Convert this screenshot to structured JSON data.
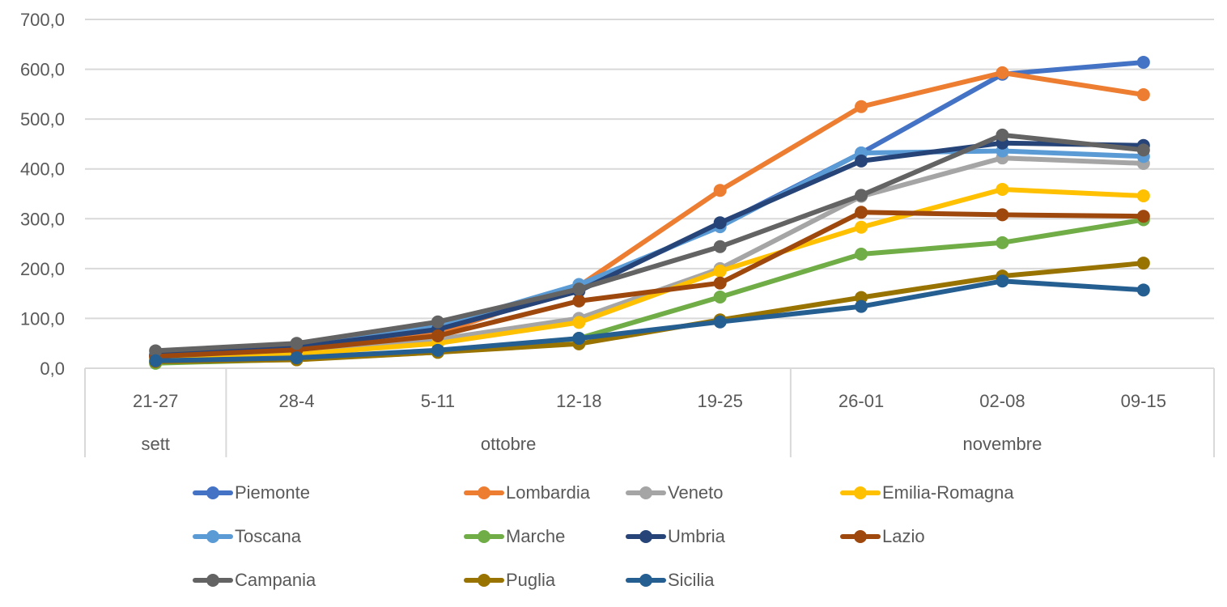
{
  "chart_data": {
    "type": "line",
    "title": "",
    "xlabel": "",
    "ylabel": "",
    "ylim": [
      0,
      700
    ],
    "y_ticks": [
      "0,0",
      "100,0",
      "200,0",
      "300,0",
      "400,0",
      "500,0",
      "600,0",
      "700,0"
    ],
    "y_tick_values": [
      0,
      100,
      200,
      300,
      400,
      500,
      600,
      700
    ],
    "grid": true,
    "legend_position": "bottom",
    "categories": [
      "21-27",
      "28-4",
      "5-11",
      "12-18",
      "19-25",
      "26-01",
      "02-08",
      "09-15"
    ],
    "category_groups": [
      {
        "label": "sett",
        "span": 1
      },
      {
        "label": "ottobre",
        "span": 4
      },
      {
        "label": "novembre",
        "span": 3
      }
    ],
    "series": [
      {
        "name": "Piemonte",
        "color": "#4472C4",
        "values": [
          25,
          40,
          80,
          160,
          288,
          432,
          590,
          614
        ]
      },
      {
        "name": "Lombardia",
        "color": "#ED7D31",
        "values": [
          22,
          38,
          70,
          165,
          357,
          525,
          593,
          549
        ]
      },
      {
        "name": "Veneto",
        "color": "#A5A5A5",
        "values": [
          24,
          35,
          58,
          100,
          200,
          345,
          422,
          411
        ]
      },
      {
        "name": "Emilia-Romagna",
        "color": "#FFC000",
        "values": [
          18,
          28,
          50,
          92,
          195,
          283,
          359,
          346
        ]
      },
      {
        "name": "Toscana",
        "color": "#5B9BD5",
        "values": [
          28,
          45,
          85,
          168,
          284,
          432,
          436,
          425
        ]
      },
      {
        "name": "Marche",
        "color": "#70AD47",
        "values": [
          10,
          18,
          32,
          60,
          143,
          229,
          252,
          298
        ]
      },
      {
        "name": "Umbria",
        "color": "#264478",
        "values": [
          26,
          42,
          78,
          155,
          292,
          416,
          452,
          447
        ]
      },
      {
        "name": "Lazio",
        "color": "#9E480E",
        "values": [
          24,
          37,
          65,
          135,
          171,
          313,
          308,
          305
        ]
      },
      {
        "name": "Campania",
        "color": "#636363",
        "values": [
          35,
          50,
          93,
          159,
          244,
          347,
          468,
          438
        ]
      },
      {
        "name": "Puglia",
        "color": "#997300",
        "values": [
          13,
          17,
          32,
          49,
          97,
          142,
          185,
          211
        ]
      },
      {
        "name": "Sicilia",
        "color": "#255E91",
        "values": [
          15,
          21,
          36,
          60,
          93,
          124,
          175,
          157
        ]
      }
    ]
  }
}
